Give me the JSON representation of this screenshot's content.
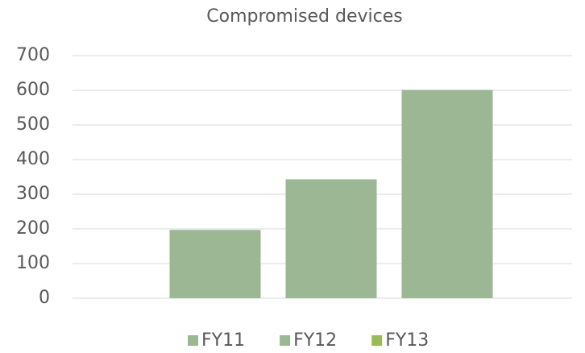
{
  "chart_data": {
    "type": "bar",
    "title": "Compromised devices",
    "categories": [
      null
    ],
    "series": [
      {
        "name": "FY11",
        "color": "#9bb794",
        "values": [
          197
        ]
      },
      {
        "name": "FY12",
        "color": "#9bb794",
        "values": [
          343
        ]
      },
      {
        "name": "FY13",
        "color": "#9bbb59",
        "values": [
          601
        ]
      }
    ],
    "bar_color": "#9bb794",
    "ylim": [
      0,
      700
    ],
    "yticks": [
      0,
      100,
      200,
      300,
      400,
      500,
      600,
      700
    ],
    "grid": true,
    "legend": "bottom"
  }
}
